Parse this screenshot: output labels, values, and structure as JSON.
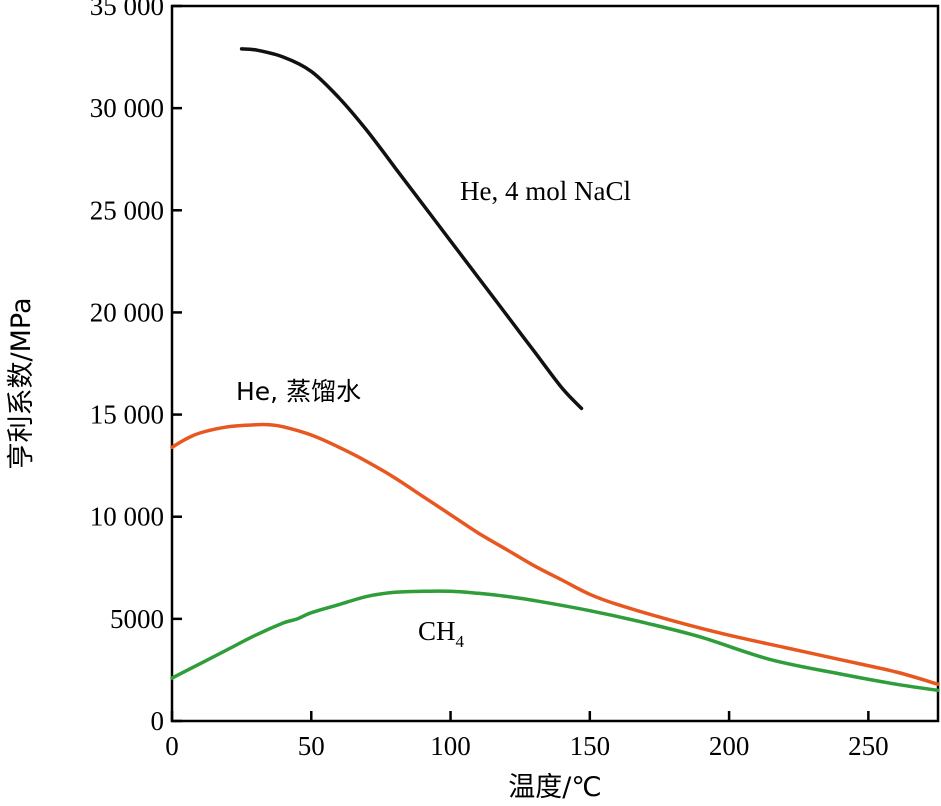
{
  "chart_data": {
    "type": "line",
    "xlabel": "温度/℃",
    "ylabel": "亨利系数/MPa",
    "xlim": [
      0,
      275
    ],
    "ylim": [
      0,
      35000
    ],
    "xticks": [
      0,
      50,
      100,
      150,
      200,
      250
    ],
    "yticks": [
      0,
      5000,
      10000,
      15000,
      20000,
      25000,
      30000,
      35000
    ],
    "xtick_labels": [
      "0",
      "50",
      "100",
      "150",
      "200",
      "250"
    ],
    "ytick_labels": [
      "0",
      "5000",
      "10 000",
      "15 000",
      "20 000",
      "25 000",
      "30 000",
      "35 000"
    ],
    "grid": false,
    "series": [
      {
        "name": "He, 4 mol NaCl",
        "color": "#111111",
        "x": [
          25,
          30,
          40,
          50,
          60,
          70,
          80,
          90,
          100,
          110,
          120,
          130,
          140,
          147
        ],
        "y": [
          32900,
          32850,
          32500,
          31800,
          30500,
          28900,
          27100,
          25300,
          23500,
          21700,
          19900,
          18100,
          16300,
          15300
        ]
      },
      {
        "name": "He, 蒸馏水",
        "color": "#e8571f",
        "x": [
          0,
          5,
          10,
          20,
          30,
          35,
          40,
          50,
          60,
          70,
          80,
          90,
          100,
          110,
          120,
          130,
          140,
          150,
          160,
          180,
          200,
          220,
          240,
          260,
          275
        ],
        "y": [
          13400,
          13800,
          14100,
          14400,
          14500,
          14500,
          14400,
          14000,
          13400,
          12700,
          11900,
          11000,
          10100,
          9200,
          8400,
          7600,
          6900,
          6200,
          5700,
          4900,
          4200,
          3600,
          3000,
          2400,
          1800
        ]
      },
      {
        "name": "CH4",
        "color": "#2f9e3a",
        "x": [
          0,
          10,
          20,
          30,
          40,
          45,
          50,
          60,
          70,
          80,
          90,
          100,
          110,
          120,
          130,
          150,
          170,
          190,
          215,
          240,
          260,
          275
        ],
        "y": [
          2100,
          2800,
          3500,
          4200,
          4800,
          5000,
          5300,
          5700,
          6100,
          6300,
          6350,
          6350,
          6250,
          6100,
          5900,
          5400,
          4800,
          4100,
          3000,
          2300,
          1800,
          1500
        ]
      }
    ],
    "annotations": [
      {
        "text": "He, 4 mol  NaCl",
        "series": "He, 4 mol NaCl"
      },
      {
        "text": "He, 蒸馏水",
        "series": "He, 蒸馏水"
      },
      {
        "text": "CH",
        "sub": "4",
        "series": "CH4"
      }
    ]
  }
}
